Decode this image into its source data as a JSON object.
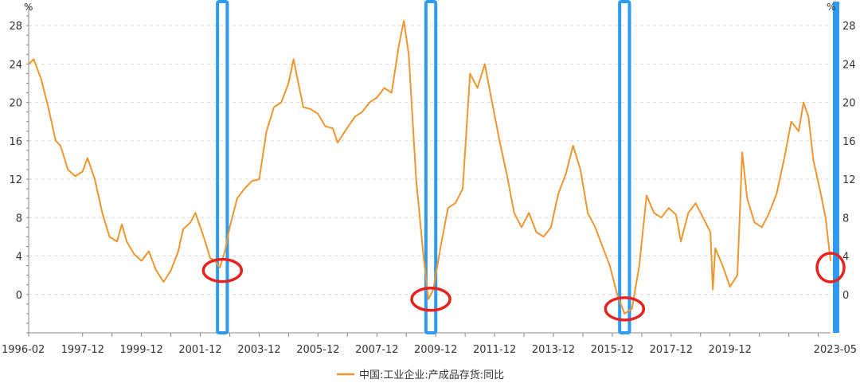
{
  "chart_data": {
    "type": "line",
    "ylim": [
      -4,
      30
    ],
    "y_ticks": [
      0,
      4,
      8,
      12,
      16,
      20,
      24,
      28
    ],
    "y_unit": "%",
    "x_tick_labels": [
      "1996-02",
      "1997-12",
      "1999-12",
      "2001-12",
      "2003-12",
      "2005-12",
      "2007-12",
      "2009-12",
      "2011-12",
      "2013-12",
      "2015-12",
      "2017-12",
      "2019-12",
      "2023-05"
    ],
    "x_range": [
      "1996-02",
      "2023-05"
    ],
    "grid": "horizontal-dashed",
    "legend_position": "bottom-center",
    "series": [
      {
        "name": "中国:工业企业:产成品存货:同比",
        "color": "#f0962e",
        "points": [
          [
            "1996-02",
            24.0
          ],
          [
            "1996-04",
            24.5
          ],
          [
            "1996-07",
            22.5
          ],
          [
            "1996-10",
            19.5
          ],
          [
            "1997-01",
            16.0
          ],
          [
            "1997-03",
            15.5
          ],
          [
            "1997-06",
            13.0
          ],
          [
            "1997-09",
            12.3
          ],
          [
            "1997-12",
            12.8
          ],
          [
            "1998-02",
            14.2
          ],
          [
            "1998-05",
            12.0
          ],
          [
            "1998-08",
            8.5
          ],
          [
            "1998-11",
            6.0
          ],
          [
            "1999-02",
            5.5
          ],
          [
            "1999-04",
            7.3
          ],
          [
            "1999-06",
            5.5
          ],
          [
            "1999-09",
            4.2
          ],
          [
            "1999-12",
            3.5
          ],
          [
            "2000-03",
            4.5
          ],
          [
            "2000-06",
            2.5
          ],
          [
            "2000-09",
            1.3
          ],
          [
            "2000-12",
            2.5
          ],
          [
            "2001-03",
            4.5
          ],
          [
            "2001-05",
            6.8
          ],
          [
            "2001-08",
            7.5
          ],
          [
            "2001-10",
            8.5
          ],
          [
            "2001-12",
            7.0
          ],
          [
            "2002-02",
            5.5
          ],
          [
            "2002-04",
            3.8
          ],
          [
            "2002-06",
            3.5
          ],
          [
            "2002-08",
            2.8
          ],
          [
            "2002-10",
            4.5
          ],
          [
            "2002-12",
            7.0
          ],
          [
            "2003-03",
            10.0
          ],
          [
            "2003-06",
            11.0
          ],
          [
            "2003-09",
            11.8
          ],
          [
            "2003-12",
            12.0
          ],
          [
            "2004-03",
            17.0
          ],
          [
            "2004-06",
            19.5
          ],
          [
            "2004-09",
            20.0
          ],
          [
            "2004-12",
            22.0
          ],
          [
            "2005-02",
            24.5
          ],
          [
            "2005-04",
            22.0
          ],
          [
            "2005-06",
            19.5
          ],
          [
            "2005-09",
            19.3
          ],
          [
            "2005-12",
            18.8
          ],
          [
            "2006-03",
            17.5
          ],
          [
            "2006-06",
            17.3
          ],
          [
            "2006-08",
            15.8
          ],
          [
            "2006-11",
            17.0
          ],
          [
            "2007-03",
            18.5
          ],
          [
            "2007-06",
            19.0
          ],
          [
            "2007-09",
            20.0
          ],
          [
            "2007-12",
            20.5
          ],
          [
            "2008-03",
            21.5
          ],
          [
            "2008-06",
            21.0
          ],
          [
            "2008-09",
            26.0
          ],
          [
            "2008-11",
            28.5
          ],
          [
            "2009-01",
            25.0
          ],
          [
            "2009-04",
            12.0
          ],
          [
            "2009-07",
            4.0
          ],
          [
            "2009-09",
            -0.5
          ],
          [
            "2009-11",
            0.5
          ],
          [
            "2010-02",
            5.0
          ],
          [
            "2010-05",
            9.0
          ],
          [
            "2010-08",
            9.5
          ],
          [
            "2010-11",
            11.0
          ],
          [
            "2011-02",
            23.0
          ],
          [
            "2011-05",
            21.5
          ],
          [
            "2011-08",
            24.0
          ],
          [
            "2011-11",
            20.0
          ],
          [
            "2012-02",
            16.0
          ],
          [
            "2012-05",
            12.5
          ],
          [
            "2012-08",
            8.5
          ],
          [
            "2012-11",
            7.0
          ],
          [
            "2013-02",
            8.5
          ],
          [
            "2013-05",
            6.5
          ],
          [
            "2013-08",
            6.0
          ],
          [
            "2013-11",
            7.0
          ],
          [
            "2014-02",
            10.5
          ],
          [
            "2014-05",
            12.5
          ],
          [
            "2014-08",
            15.5
          ],
          [
            "2014-11",
            13.0
          ],
          [
            "2015-02",
            8.5
          ],
          [
            "2015-05",
            7.0
          ],
          [
            "2015-08",
            5.0
          ],
          [
            "2015-11",
            3.0
          ],
          [
            "2016-02",
            0.0
          ],
          [
            "2016-05",
            -2.0
          ],
          [
            "2016-08",
            -1.5
          ],
          [
            "2016-11",
            3.0
          ],
          [
            "2017-02",
            10.3
          ],
          [
            "2017-05",
            8.5
          ],
          [
            "2017-08",
            8.0
          ],
          [
            "2017-11",
            9.0
          ],
          [
            "2018-02",
            8.3
          ],
          [
            "2018-04",
            5.5
          ],
          [
            "2018-07",
            8.5
          ],
          [
            "2018-10",
            9.5
          ],
          [
            "2019-01",
            8.0
          ],
          [
            "2019-04",
            6.5
          ],
          [
            "2019-05",
            0.5
          ],
          [
            "2019-06",
            4.8
          ],
          [
            "2019-09",
            3.0
          ],
          [
            "2019-12",
            0.8
          ],
          [
            "2020-03",
            2.0
          ],
          [
            "2020-05",
            14.8
          ],
          [
            "2020-07",
            10.0
          ],
          [
            "2020-10",
            7.5
          ],
          [
            "2021-01",
            7.0
          ],
          [
            "2021-04",
            8.5
          ],
          [
            "2021-07",
            10.5
          ],
          [
            "2021-10",
            14.0
          ],
          [
            "2022-01",
            18.0
          ],
          [
            "2022-04",
            17.0
          ],
          [
            "2022-06",
            20.0
          ],
          [
            "2022-08",
            18.5
          ],
          [
            "2022-10",
            14.0
          ],
          [
            "2023-01",
            10.5
          ],
          [
            "2023-03",
            8.0
          ],
          [
            "2023-05",
            3.5
          ]
        ]
      }
    ],
    "highlight_bands": [
      {
        "start": "2002-07",
        "end": "2002-11",
        "color": "#2e9bf0"
      },
      {
        "start": "2009-08",
        "end": "2009-12",
        "color": "#2e9bf0"
      },
      {
        "start": "2016-03",
        "end": "2016-07",
        "color": "#2e9bf0"
      }
    ],
    "highlight_circles": [
      {
        "x": "2002-09",
        "y": 2.5,
        "color": "#e8231f"
      },
      {
        "x": "2009-10",
        "y": -0.5,
        "color": "#e8231f"
      },
      {
        "x": "2016-05",
        "y": -1.5,
        "color": "#e8231f"
      },
      {
        "x": "2023-05",
        "y": 2.8,
        "color": "#e8231f"
      }
    ]
  }
}
